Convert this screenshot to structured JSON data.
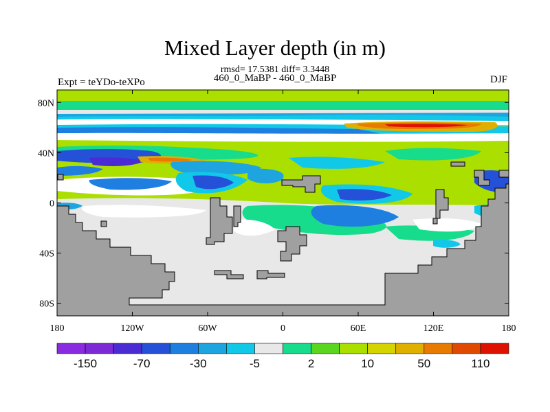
{
  "figure": {
    "title": "Mixed Layer depth (in m)",
    "stats": "rmsd= 17.5381 diff= 3.3448",
    "case": "460_0_MaBP - 460_0_MaBP",
    "left_label": "Expt = teYDo-teXPo",
    "right_label": "DJF"
  },
  "map": {
    "projection": "cylindrical-equidistant",
    "lon_range": [
      -180,
      180
    ],
    "lat_range": [
      -90,
      90
    ],
    "lat_ticks": [
      "80N",
      "40N",
      "0",
      "40S",
      "80S"
    ],
    "lat_tick_values": [
      80,
      40,
      0,
      -40,
      -80
    ],
    "lon_ticks": [
      "180",
      "120W",
      "60W",
      "0",
      "60E",
      "120E",
      "180"
    ],
    "lon_tick_values": [
      -180,
      -120,
      -60,
      0,
      60,
      120,
      180
    ],
    "land_color": "#a0a0a0",
    "missing_color": "#e8e8e8"
  },
  "colorbar": {
    "colors": [
      "#8a2be2",
      "#7b2ad6",
      "#4b2bd3",
      "#2451d8",
      "#1e7fe0",
      "#1ea5e0",
      "#12c8e8",
      "#e8e8e8",
      "#17dc8c",
      "#5ad61f",
      "#aadf00",
      "#d4d400",
      "#e0b000",
      "#e87a00",
      "#e04a00",
      "#dd1200"
    ],
    "labels": [
      "-150",
      "-70",
      "-30",
      "-5",
      "2",
      "10",
      "50",
      "110"
    ]
  }
}
